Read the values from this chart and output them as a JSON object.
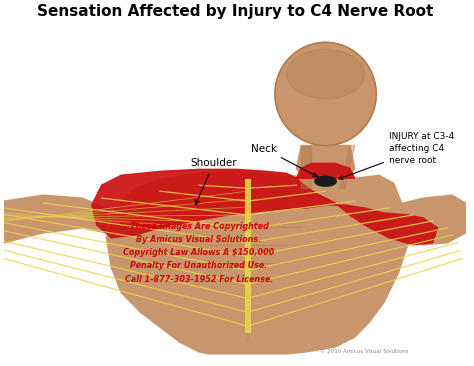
{
  "title": "Sensation Affected by Injury to C4 Nerve Root",
  "title_fontsize": 11,
  "title_fontweight": "bold",
  "label_neck": "Neck",
  "label_shoulder": "Shoulder",
  "label_injury": "INJURY at C3-4\naffecting C4\nnerve root",
  "copyright_lines": [
    "These Images Are Copyrighted",
    "By Amicus Visual Solutions.",
    "Copyright Law Allows A $150,000",
    "Penalty For Unauthorized Use.",
    "Call 1-877-303-1952 For License."
  ],
  "watermark_color": "#cc0000",
  "credit_text": "© 2010 Amicus Visual Solutions",
  "skin_light": "#c8956c",
  "skin_mid": "#b07848",
  "skin_dark": "#8a5c38",
  "red_color": "#cc1111",
  "nerve_color": "#e8d44d",
  "nerve_dark": "#c8a820"
}
